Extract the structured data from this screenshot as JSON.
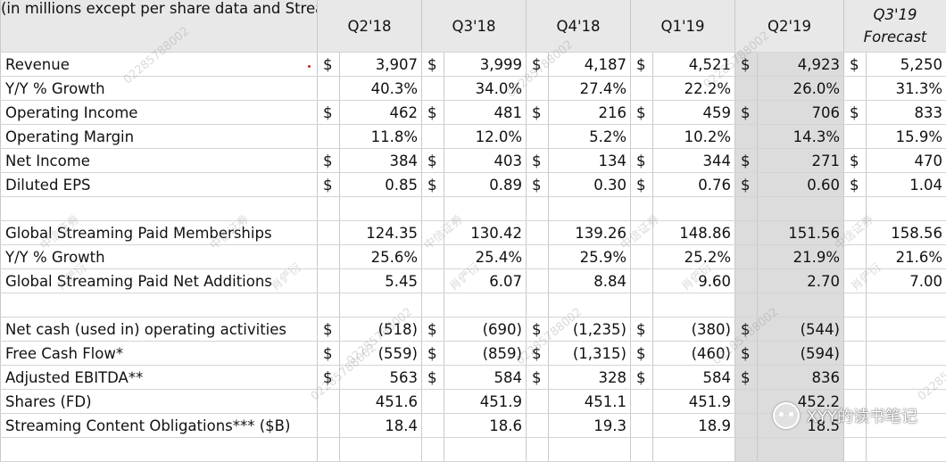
{
  "header": {
    "note": "(in millions except per share data and Streaming Content Obligations)",
    "periods": [
      "Q2'18",
      "Q3'18",
      "Q4'18",
      "Q1'19",
      "Q2'19"
    ],
    "forecast_line1": "Q3'19",
    "forecast_line2": "Forecast"
  },
  "rows": [
    {
      "label": "Revenue",
      "cells": [
        [
          "$",
          "3,907"
        ],
        [
          "$",
          "3,999"
        ],
        [
          "$",
          "4,187"
        ],
        [
          "$",
          "4,521"
        ],
        [
          "$",
          "4,923"
        ],
        [
          "$",
          "5,250"
        ]
      ]
    },
    {
      "label": "Y/Y % Growth",
      "indent": true,
      "cells": [
        [
          "",
          "40.3%"
        ],
        [
          "",
          "34.0%"
        ],
        [
          "",
          "27.4%"
        ],
        [
          "",
          "22.2%"
        ],
        [
          "",
          "26.0%"
        ],
        [
          "",
          "31.3%"
        ]
      ]
    },
    {
      "label": "Operating Income",
      "cells": [
        [
          "$",
          "462"
        ],
        [
          "$",
          "481"
        ],
        [
          "$",
          "216"
        ],
        [
          "$",
          "459"
        ],
        [
          "$",
          "706"
        ],
        [
          "$",
          "833"
        ]
      ]
    },
    {
      "label": "Operating Margin",
      "cells": [
        [
          "",
          "11.8%"
        ],
        [
          "",
          "12.0%"
        ],
        [
          "",
          "5.2%"
        ],
        [
          "",
          "10.2%"
        ],
        [
          "",
          "14.3%"
        ],
        [
          "",
          "15.9%"
        ]
      ]
    },
    {
      "label": "Net Income",
      "cells": [
        [
          "$",
          "384"
        ],
        [
          "$",
          "403"
        ],
        [
          "$",
          "134"
        ],
        [
          "$",
          "344"
        ],
        [
          "$",
          "271"
        ],
        [
          "$",
          "470"
        ]
      ]
    },
    {
      "label": "Diluted EPS",
      "cells": [
        [
          "$",
          "0.85"
        ],
        [
          "$",
          "0.89"
        ],
        [
          "$",
          "0.30"
        ],
        [
          "$",
          "0.76"
        ],
        [
          "$",
          "0.60"
        ],
        [
          "$",
          "1.04"
        ]
      ]
    },
    {
      "spacer": true
    },
    {
      "label": "Global Streaming Paid Memberships",
      "cells": [
        [
          "",
          "124.35"
        ],
        [
          "",
          "130.42"
        ],
        [
          "",
          "139.26"
        ],
        [
          "",
          "148.86"
        ],
        [
          "",
          "151.56"
        ],
        [
          "",
          "158.56"
        ]
      ]
    },
    {
      "label": "Y/Y % Growth",
      "indent": true,
      "cells": [
        [
          "",
          "25.6%"
        ],
        [
          "",
          "25.4%"
        ],
        [
          "",
          "25.9%"
        ],
        [
          "",
          "25.2%"
        ],
        [
          "",
          "21.9%"
        ],
        [
          "",
          "21.6%"
        ]
      ]
    },
    {
      "label": "Global Streaming Paid Net Additions",
      "cells": [
        [
          "",
          "5.45"
        ],
        [
          "",
          "6.07"
        ],
        [
          "",
          "8.84"
        ],
        [
          "",
          "9.60"
        ],
        [
          "",
          "2.70"
        ],
        [
          "",
          "7.00"
        ]
      ]
    },
    {
      "spacer": true
    },
    {
      "label": "Net cash (used in) operating activities",
      "cells": [
        [
          "$",
          "(518)"
        ],
        [
          "$",
          "(690)"
        ],
        [
          "$",
          "(1,235)"
        ],
        [
          "$",
          "(380)"
        ],
        [
          "$",
          "(544)"
        ],
        [
          "",
          ""
        ]
      ]
    },
    {
      "label": "Free Cash Flow*",
      "cells": [
        [
          "$",
          "(559)"
        ],
        [
          "$",
          "(859)"
        ],
        [
          "$",
          "(1,315)"
        ],
        [
          "$",
          "(460)"
        ],
        [
          "$",
          "(594)"
        ],
        [
          "",
          ""
        ]
      ]
    },
    {
      "label": "Adjusted EBITDA**",
      "cells": [
        [
          "$",
          "563"
        ],
        [
          "$",
          "584"
        ],
        [
          "$",
          "328"
        ],
        [
          "$",
          "584"
        ],
        [
          "$",
          "836"
        ],
        [
          "",
          ""
        ]
      ]
    },
    {
      "label": "Shares (FD)",
      "cells": [
        [
          "",
          "451.6"
        ],
        [
          "",
          "451.9"
        ],
        [
          "",
          "451.1"
        ],
        [
          "",
          "451.9"
        ],
        [
          "",
          "452.2"
        ],
        [
          "",
          ""
        ]
      ]
    },
    {
      "label": "Streaming Content Obligations*** ($B)",
      "cells": [
        [
          "",
          "18.4"
        ],
        [
          "",
          "18.6"
        ],
        [
          "",
          "19.3"
        ],
        [
          "",
          "18.9"
        ],
        [
          "",
          "18.5"
        ],
        [
          "",
          ""
        ]
      ]
    },
    {
      "spacer": true
    }
  ],
  "watermark": {
    "text": "XYY的读书笔记",
    "icon": "wechat-logo-icon"
  },
  "faint_marks": [
    "02285788002",
    "中信证券",
    "肖俨衍"
  ],
  "colors": {
    "highlight_column": "#dcdcdc",
    "header_background": "#e8e8e8",
    "grid_line": "#c9c9c9"
  }
}
